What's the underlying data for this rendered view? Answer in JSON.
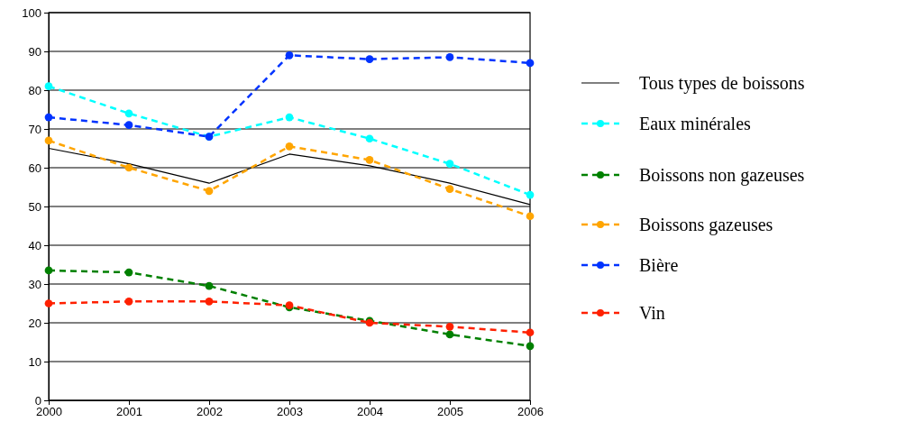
{
  "chart_data": {
    "type": "line",
    "x": [
      2000,
      2001,
      2002,
      2003,
      2004,
      2005,
      2006
    ],
    "xlim": [
      2000,
      2006
    ],
    "xticks": [
      2000,
      2001,
      2002,
      2003,
      2004,
      2005,
      2006
    ],
    "ylim": [
      0,
      100
    ],
    "yticks": [
      0,
      10,
      20,
      30,
      40,
      50,
      60,
      70,
      80,
      90,
      100
    ],
    "grid": "y",
    "legend": "right",
    "series": [
      {
        "name": "Tous types de boissons",
        "color": "#000000",
        "values": [
          65,
          61,
          56,
          63.5,
          60.5,
          56,
          50.5
        ],
        "marker": "none",
        "line_style": "solid"
      },
      {
        "name": "Eaux minérales",
        "color": "#00ffff",
        "values": [
          81,
          74,
          68,
          73,
          67.5,
          61,
          53
        ],
        "marker": "circle",
        "line_style": "dashed"
      },
      {
        "name": "Boissons non gazeuses",
        "color": "#008000",
        "values": [
          33.5,
          33,
          29.5,
          24,
          20.5,
          17,
          14
        ],
        "marker": "circle",
        "line_style": "dashed"
      },
      {
        "name": "Boissons gazeuses",
        "color": "#ffa500",
        "values": [
          67,
          60,
          54,
          65.5,
          62,
          54.5,
          47.5
        ],
        "marker": "circle",
        "line_style": "dashed"
      },
      {
        "name": "Bière",
        "color": "#0033ff",
        "values": [
          73,
          71,
          68,
          89,
          88,
          88.5,
          87
        ],
        "marker": "circle",
        "line_style": "dashed"
      },
      {
        "name": "Vin",
        "color": "#ff2000",
        "values": [
          25,
          25.5,
          25.5,
          24.5,
          20,
          19,
          17.5
        ],
        "marker": "circle",
        "line_style": "dashed"
      }
    ]
  }
}
